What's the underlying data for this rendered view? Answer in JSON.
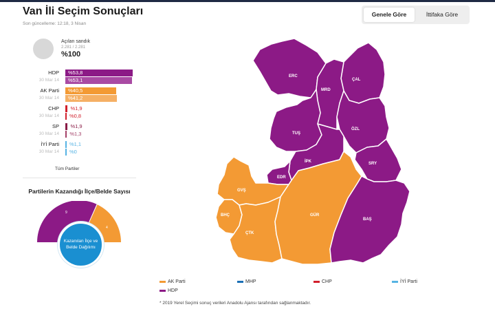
{
  "header": {
    "title": "Van İli Seçim Sonuçları",
    "updated": "Son güncelleme: 12:18, 3 Nisan",
    "toggle": [
      "Genele Göre",
      "İttifaka Göre"
    ]
  },
  "ballot": {
    "label": "Açılan sandık",
    "count": "2.281 / 2.281",
    "percent": "%100"
  },
  "parties": [
    {
      "name": "HDP",
      "prev_label": "30 Mar 14",
      "current": "%53,8",
      "previous": "%53,1",
      "current_value": 53.8,
      "previous_value": 53.1,
      "color": "#8c1a86",
      "prev_color": "#a94aa3"
    },
    {
      "name": "AK Parti",
      "prev_label": "30 Mar 14",
      "current": "%40,5",
      "previous": "%41,2",
      "current_value": 40.5,
      "previous_value": 41.2,
      "color": "#f39a34",
      "prev_color": "#f5b065"
    },
    {
      "name": "CHP",
      "prev_label": "30 Mar 14",
      "current": "%1,9",
      "previous": "%0,8",
      "current_value": 1.9,
      "previous_value": 0.8,
      "color": "#d21f2b",
      "prev_color": "#d21f2b"
    },
    {
      "name": "SP",
      "prev_label": "30 Mar 14",
      "current": "%1,9",
      "previous": "%1,3",
      "current_value": 1.9,
      "previous_value": 1.3,
      "color": "#8a1c46",
      "prev_color": "#a34068"
    },
    {
      "name": "İYİ Parti",
      "prev_label": "30 Mar 14",
      "current": "%1,1",
      "previous": "%0",
      "current_value": 1.1,
      "previous_value": 0,
      "color": "#56b3e3",
      "prev_color": "#56b3e3"
    }
  ],
  "all_parties_link": "Tüm Partiler",
  "won": {
    "title": "Partilerin Kazandığı İlçe/Belde Sayısı",
    "hdp_count": "9",
    "akp_count": "4",
    "hdp_value": 9,
    "akp_value": 4,
    "button": "Kazanılan İlçe ve Belde Dağılımı"
  },
  "districts": {
    "erc": "ERC",
    "mrd": "MRD",
    "cal": "ÇAL",
    "tus": "TUŞ",
    "ozl": "ÖZL",
    "ipk": "İPK",
    "sry": "SRY",
    "edr": "EDR",
    "gvs": "GVŞ",
    "bhc": "BHÇ",
    "gur": "GÜR",
    "ctk": "ÇTK",
    "bas": "BAŞ"
  },
  "legend": [
    {
      "name": "AK Parti",
      "color": "#f39a34"
    },
    {
      "name": "MHP",
      "color": "#1a6fb5"
    },
    {
      "name": "CHP",
      "color": "#d21f2b"
    },
    {
      "name": "İYİ Parti",
      "color": "#56b3e3"
    },
    {
      "name": "HDP",
      "color": "#8c1a86"
    }
  ],
  "footnote": "* 2019 Yerel Seçimi sonuç verileri Anadolu Ajansı tarafından sağlanmaktadır."
}
